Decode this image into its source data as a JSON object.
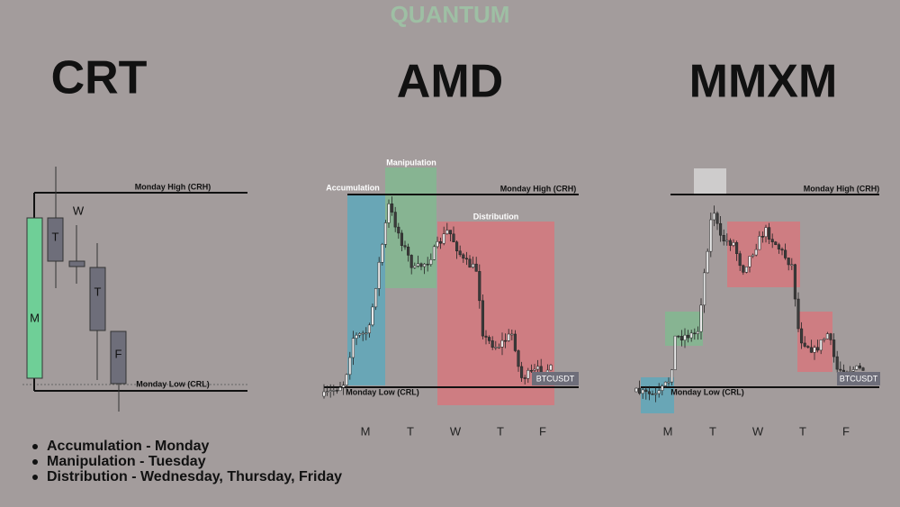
{
  "watermark": "QUANTUM",
  "panels": [
    {
      "title": "CRT",
      "high_label": "Monday High (CRH)",
      "low_label": "Monday Low (CRL)",
      "candle_labels": [
        "M",
        "T",
        "W",
        "T",
        "F"
      ]
    },
    {
      "title": "AMD",
      "zones": [
        "Accumulation",
        "Manipulation",
        "Distribution"
      ],
      "high_label": "Monday High (CRH)",
      "low_label": "Monday Low (CRL)",
      "ticker": "BTCUSDT",
      "days": [
        "M",
        "T",
        "W",
        "T",
        "F"
      ]
    },
    {
      "title": "MMXM",
      "high_label": "Monday High (CRH)",
      "low_label": "Monday Low (CRL)",
      "ticker": "BTCUSDT",
      "days": [
        "M",
        "T",
        "W",
        "T",
        "F"
      ]
    }
  ],
  "bullets": [
    "Accumulation - Monday",
    "Manipulation - Tuesday",
    "Distribution - Wednesday, Thursday, Friday"
  ]
}
